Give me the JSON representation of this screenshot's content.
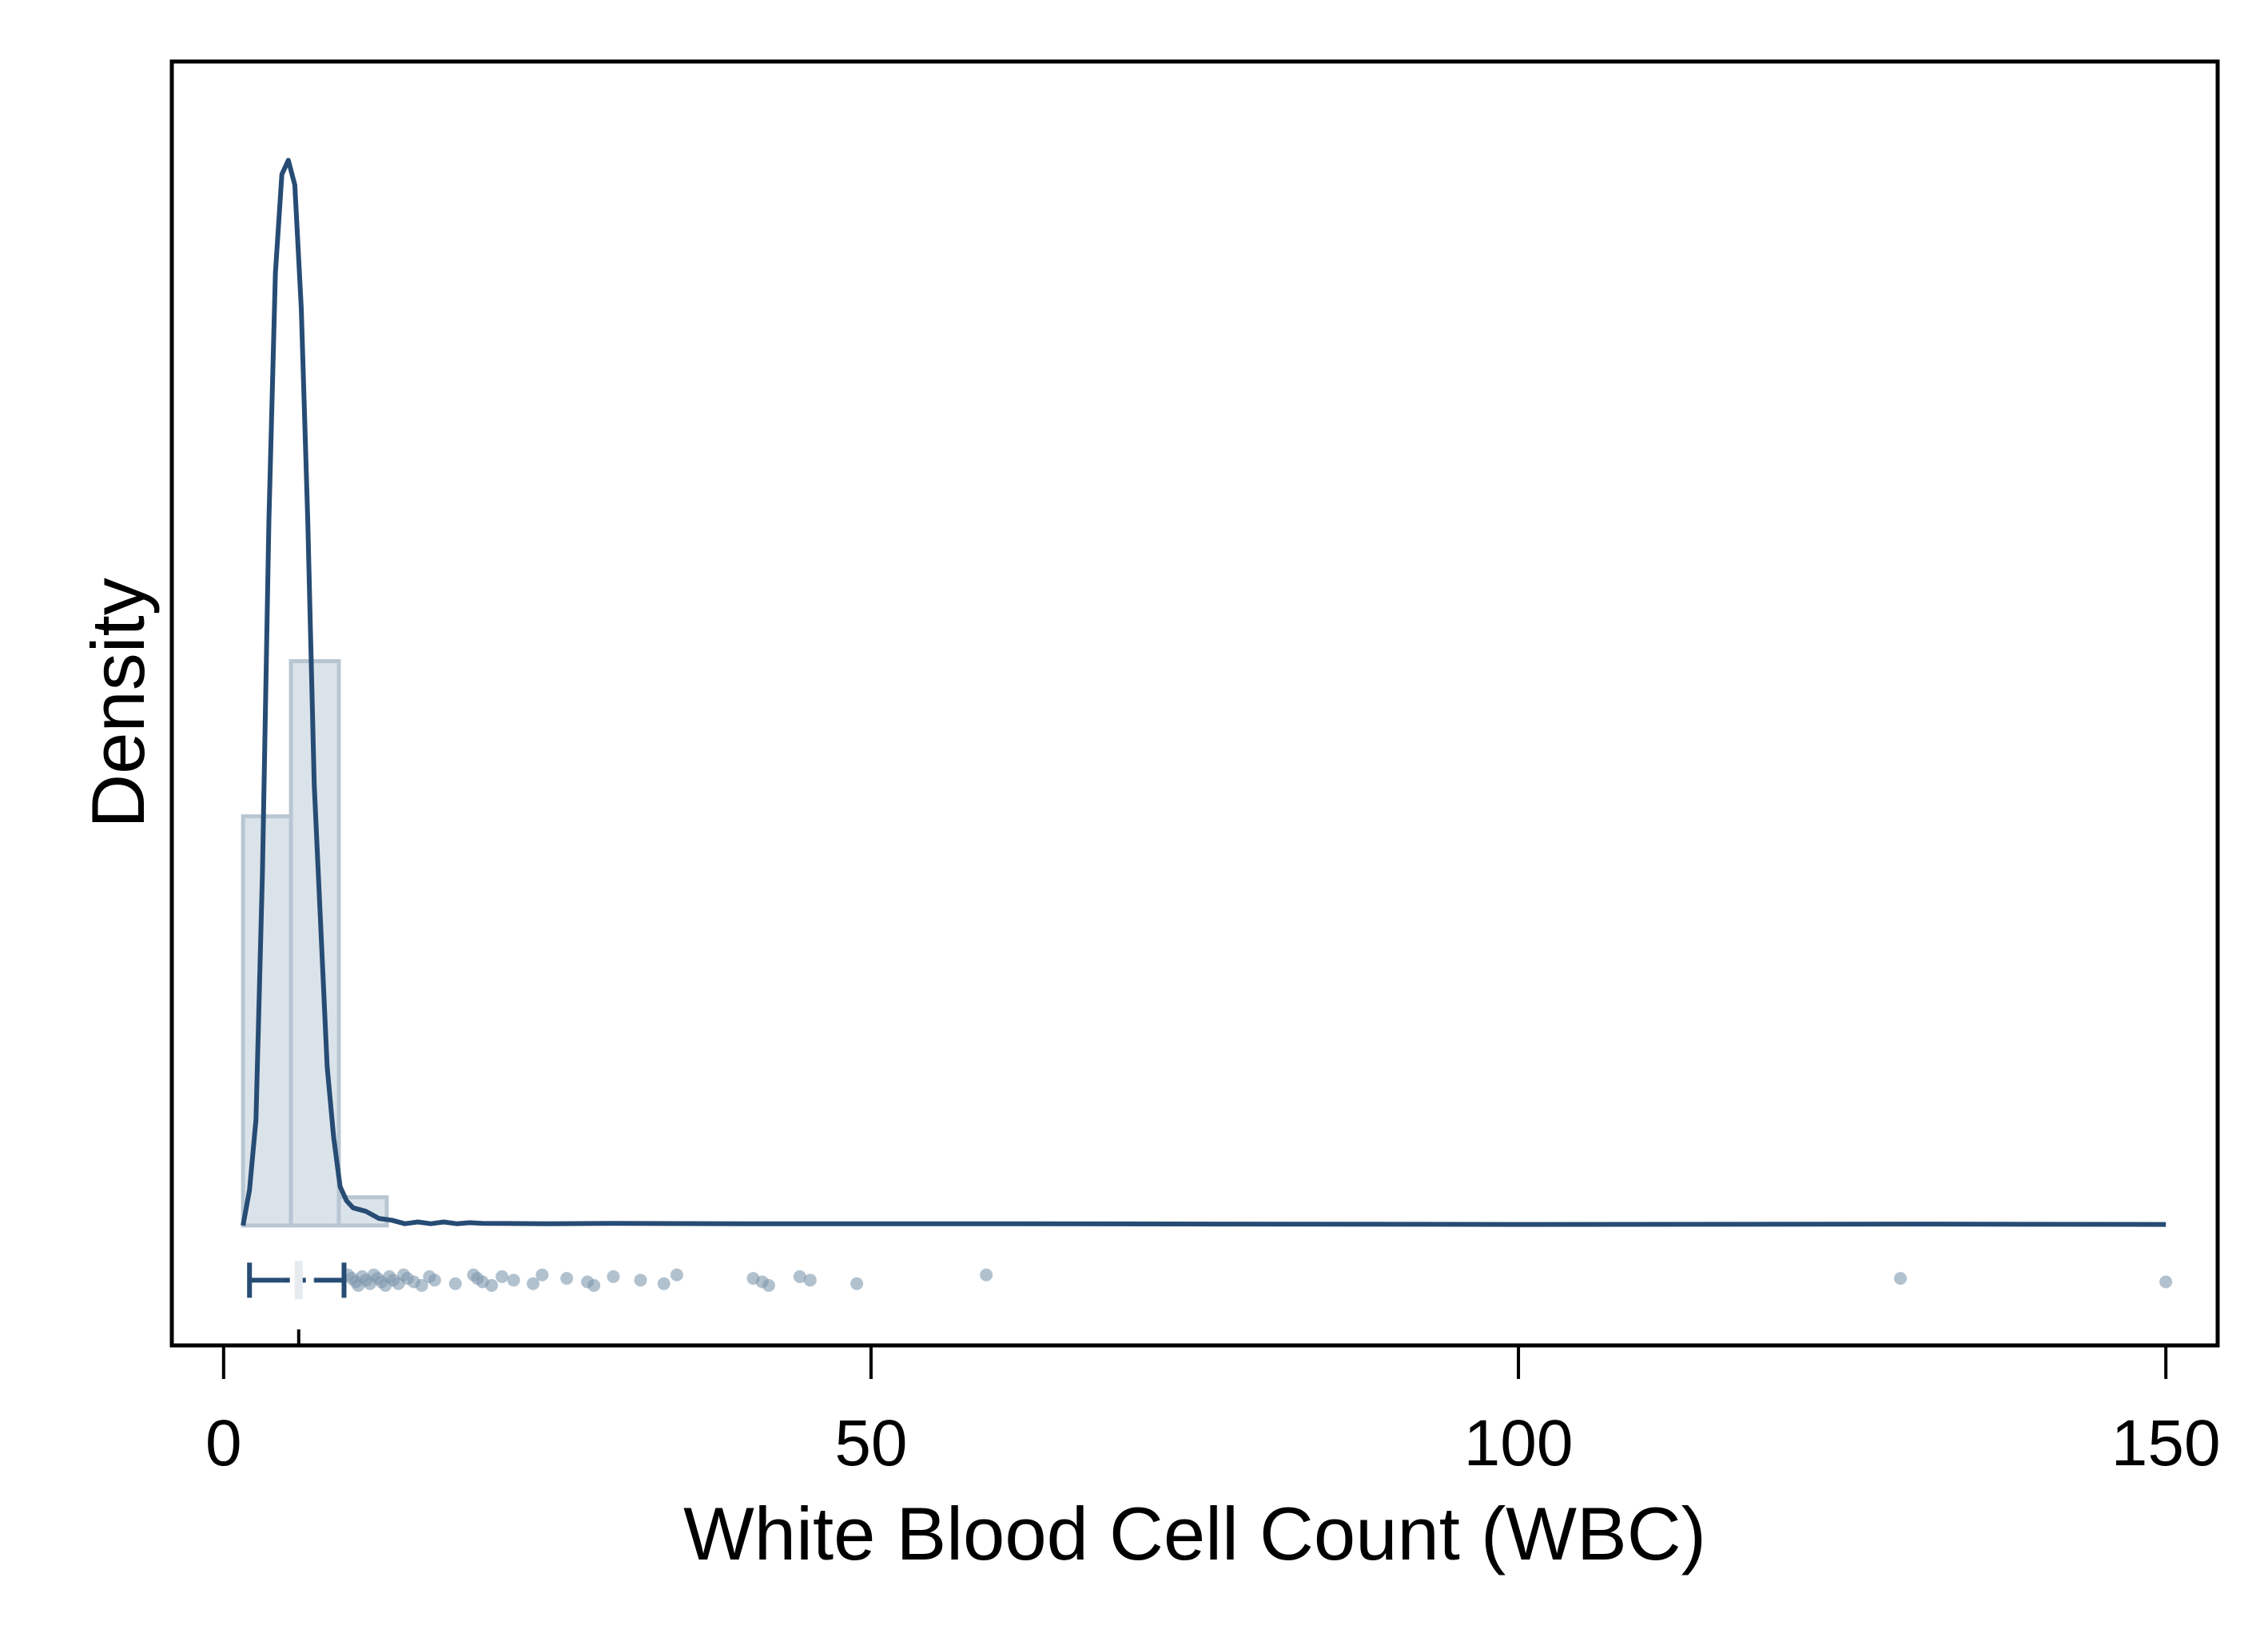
{
  "chart_data": {
    "type": "histogram",
    "xlabel": "White Blood Cell Count (WBC)",
    "ylabel": "Density",
    "xlim": [
      -4,
      154
    ],
    "ylim": [
      -0.034,
      0.33
    ],
    "x_ticks": [
      0,
      50,
      100,
      150
    ],
    "x_tick_labels": [
      "0",
      "50",
      "100",
      "150"
    ],
    "y_ticks_shown": false,
    "grid": false,
    "histogram_bins": [
      {
        "x0": 1.5,
        "x1": 5.2,
        "density": 0.116
      },
      {
        "x0": 5.2,
        "x1": 8.9,
        "density": 0.16
      },
      {
        "x0": 8.9,
        "x1": 12.6,
        "density": 0.008
      }
    ],
    "density_curve": {
      "x": [
        1.5,
        2.0,
        2.5,
        3.0,
        3.5,
        4.0,
        4.5,
        5.0,
        5.5,
        6.0,
        6.5,
        7.0,
        7.5,
        8.0,
        8.5,
        9.0,
        9.5,
        10.0,
        11.0,
        12.0,
        13.0,
        14.0,
        15.0,
        16.0,
        17.0,
        18.0,
        19.0,
        20.0,
        25.0,
        30.0,
        40.0,
        50.0,
        60.0,
        100.0,
        130.0,
        150.0
      ],
      "y": [
        0.0,
        0.01,
        0.03,
        0.1,
        0.2,
        0.27,
        0.298,
        0.302,
        0.295,
        0.26,
        0.2,
        0.125,
        0.085,
        0.045,
        0.025,
        0.011,
        0.007,
        0.005,
        0.004,
        0.002,
        0.0015,
        0.0005,
        0.001,
        0.0005,
        0.001,
        0.0005,
        0.0008,
        0.0006,
        0.0005,
        0.0006,
        0.0005,
        0.0005,
        0.0005,
        0.0003,
        0.0004,
        0.0003
      ]
    },
    "boxplot": {
      "whisker_low": 2.0,
      "q1": 4.5,
      "median": 5.8,
      "q3": 7.0,
      "whisker_high": 9.3
    },
    "outlier_points": [
      9.6,
      9.9,
      10.2,
      10.4,
      10.7,
      11.0,
      11.3,
      11.6,
      11.9,
      12.2,
      12.5,
      12.8,
      13.1,
      13.5,
      13.9,
      14.2,
      14.7,
      15.3,
      15.9,
      16.3,
      17.9,
      19.3,
      19.6,
      20.0,
      20.7,
      21.5,
      22.4,
      23.9,
      24.6,
      26.5,
      28.1,
      28.6,
      30.1,
      32.2,
      34.0,
      35.0,
      40.9,
      41.6,
      42.1,
      44.5,
      45.3,
      48.9,
      58.9,
      129.5,
      150.0
    ],
    "colors": {
      "curve": "#274c74",
      "histogram_fill": "#dbe3ea",
      "histogram_edge": "#b8c6d3",
      "points": "#7e97ae",
      "boxplot": "#274c74",
      "axis": "#000000"
    }
  }
}
